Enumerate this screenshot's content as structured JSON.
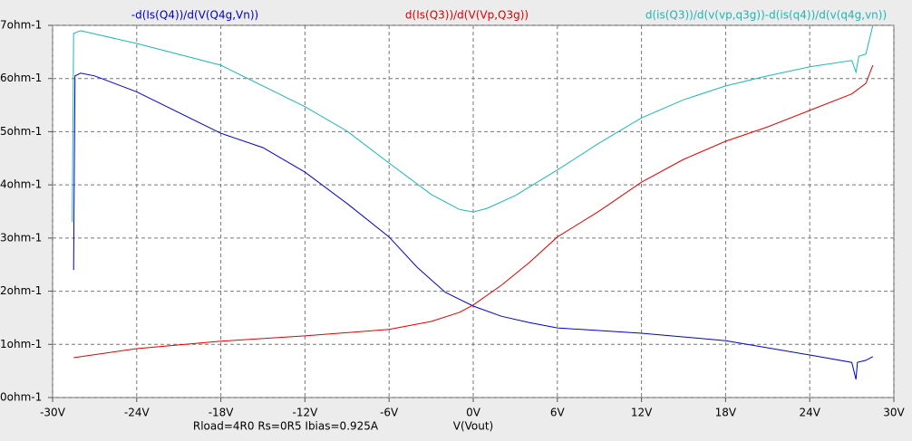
{
  "chart_data": {
    "type": "line",
    "annotation": "Rload=4R0 Rs=0R5 Ibias=0.925A",
    "x_label": "V(Vout)",
    "xlim": [
      -30,
      30
    ],
    "xticks": [
      {
        "value": -30,
        "label": "-30V"
      },
      {
        "value": -24,
        "label": "-24V"
      },
      {
        "value": -18,
        "label": "-18V"
      },
      {
        "value": -12,
        "label": "-12V"
      },
      {
        "value": -6,
        "label": "-6V"
      },
      {
        "value": 0,
        "label": "0V"
      },
      {
        "value": 6,
        "label": "6V"
      },
      {
        "value": 12,
        "label": "12V"
      },
      {
        "value": 18,
        "label": "18V"
      },
      {
        "value": 24,
        "label": "24V"
      },
      {
        "value": 30,
        "label": "30V"
      }
    ],
    "ylim": [
      0,
      7
    ],
    "yticks": [
      {
        "value": 0,
        "label": "0ohm-1"
      },
      {
        "value": 1,
        "label": "1ohm-1"
      },
      {
        "value": 2,
        "label": "2ohm-1"
      },
      {
        "value": 3,
        "label": "3ohm-1"
      },
      {
        "value": 4,
        "label": "4ohm-1"
      },
      {
        "value": 5,
        "label": "5ohm-1"
      },
      {
        "value": 6,
        "label": "6ohm-1"
      },
      {
        "value": 7,
        "label": "7ohm-1"
      }
    ],
    "grid": true,
    "series": [
      {
        "name": "-d(Is(Q4))/d(V(Q4g,Vn))",
        "color": "#0000cc",
        "x": [
          -28.5,
          -28.4,
          -28,
          -27,
          -24,
          -18,
          -15,
          -12,
          -9,
          -6,
          -4,
          -2,
          0,
          2,
          4,
          6,
          12,
          18,
          24,
          27,
          27.3,
          27.4,
          28,
          28.5
        ],
        "values": [
          2.4,
          6.05,
          6.1,
          6.05,
          5.75,
          4.97,
          4.7,
          4.24,
          3.65,
          3.02,
          2.45,
          1.98,
          1.72,
          1.53,
          1.41,
          1.31,
          1.21,
          1.07,
          0.8,
          0.66,
          0.34,
          0.66,
          0.7,
          0.77
        ]
      },
      {
        "name": "d(Is(Q3))/d(V(Vp,Q3g))",
        "color": "#e00000",
        "x": [
          -28.5,
          -24,
          -18,
          -12,
          -6,
          -3,
          -1,
          0,
          2,
          4,
          6,
          9,
          12,
          15,
          18,
          21,
          24,
          27,
          28,
          28.5
        ],
        "values": [
          0.75,
          0.92,
          1.06,
          1.16,
          1.28,
          1.43,
          1.6,
          1.74,
          2.11,
          2.54,
          3.02,
          3.51,
          4.05,
          4.48,
          4.82,
          5.09,
          5.4,
          5.71,
          5.91,
          6.25
        ]
      },
      {
        "name": "d(is(Q3))/d(v(vp,q3g))-d(is(q4))/d(v(q4g,vn))",
        "color": "#1fb5b5",
        "x": [
          -28.6,
          -28.5,
          -28,
          -24,
          -18,
          -12,
          -9,
          -6,
          -3,
          -1,
          0,
          1,
          3,
          6,
          9,
          12,
          15,
          18,
          21,
          24,
          27,
          27.3,
          27.5,
          28,
          28.5
        ],
        "values": [
          3.3,
          6.85,
          6.9,
          6.66,
          6.25,
          5.47,
          5.01,
          4.41,
          3.82,
          3.54,
          3.49,
          3.56,
          3.8,
          4.28,
          4.79,
          5.26,
          5.6,
          5.86,
          6.05,
          6.22,
          6.34,
          6.12,
          6.42,
          6.46,
          7.0
        ]
      }
    ]
  }
}
